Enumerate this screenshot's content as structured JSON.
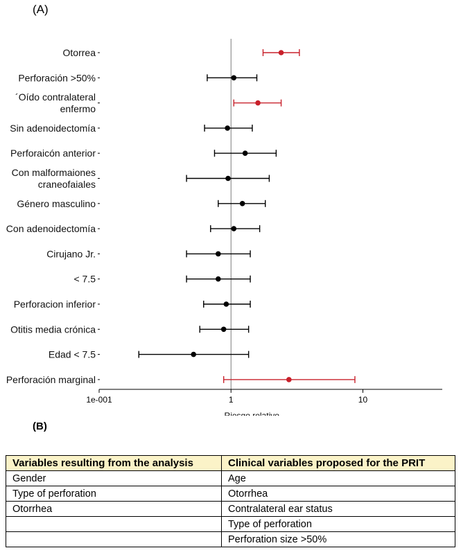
{
  "panel_a_label": "(A)",
  "panel_b_label": "(B)",
  "chart_data": {
    "type": "scatter",
    "subtype": "forest-plot",
    "xlabel": "Riesgo relativo",
    "x_scale": "log",
    "xlim": [
      0.1,
      40
    ],
    "x_ticks": [
      {
        "value": 0.1,
        "label": "1e-001"
      },
      {
        "value": 1,
        "label": "1"
      },
      {
        "value": 10,
        "label": "10"
      }
    ],
    "reference_line": 1,
    "grid": false,
    "colors": {
      "significant": "#c8202a",
      "default": "#000000",
      "reference": "#7a7a7a"
    },
    "rows": [
      {
        "label": [
          "Otorrea"
        ],
        "estimate": 2.4,
        "lower": 1.75,
        "upper": 3.3,
        "highlight": true
      },
      {
        "label": [
          "Perforación >50%"
        ],
        "estimate": 1.05,
        "lower": 0.66,
        "upper": 1.57,
        "highlight": false
      },
      {
        "label": [
          "´Oído contralateral",
          "enfermo"
        ],
        "estimate": 1.6,
        "lower": 1.05,
        "upper": 2.4,
        "highlight": true
      },
      {
        "label": [
          "Sin adenoidectomía"
        ],
        "estimate": 0.94,
        "lower": 0.63,
        "upper": 1.45,
        "highlight": false
      },
      {
        "label": [
          "Perforaicón anterior"
        ],
        "estimate": 1.28,
        "lower": 0.75,
        "upper": 2.2,
        "highlight": false
      },
      {
        "label": [
          "Con malformaiones",
          "craneofaiales"
        ],
        "estimate": 0.95,
        "lower": 0.46,
        "upper": 1.95,
        "highlight": false
      },
      {
        "label": [
          "Género masculino"
        ],
        "estimate": 1.22,
        "lower": 0.8,
        "upper": 1.82,
        "highlight": false
      },
      {
        "label": [
          "Con adenoidectomía"
        ],
        "estimate": 1.05,
        "lower": 0.7,
        "upper": 1.65,
        "highlight": false
      },
      {
        "label": [
          "Cirujano Jr."
        ],
        "estimate": 0.8,
        "lower": 0.46,
        "upper": 1.4,
        "highlight": false
      },
      {
        "label": [
          "< 7.5"
        ],
        "estimate": 0.8,
        "lower": 0.46,
        "upper": 1.4,
        "highlight": false
      },
      {
        "label": [
          "Perforacion inferior"
        ],
        "estimate": 0.92,
        "lower": 0.62,
        "upper": 1.4,
        "highlight": false
      },
      {
        "label": [
          "Otitis media crónica"
        ],
        "estimate": 0.88,
        "lower": 0.58,
        "upper": 1.36,
        "highlight": false
      },
      {
        "label": [
          "Edad  < 7.5"
        ],
        "estimate": 0.52,
        "lower": 0.2,
        "upper": 1.36,
        "highlight": false
      },
      {
        "label": [
          "Perforación marginal"
        ],
        "estimate": 2.75,
        "lower": 0.88,
        "upper": 8.7,
        "highlight": true
      }
    ]
  },
  "table": {
    "headers": [
      "Variables resulting from the analysis",
      "Clinical variables proposed for the PRIT"
    ],
    "rows": [
      [
        "Gender",
        "Age"
      ],
      [
        "Type of perforation",
        "Otorrhea"
      ],
      [
        "Otorrhea",
        "Contralateral ear status"
      ],
      [
        "",
        "Type of perforation"
      ],
      [
        "",
        "Perforation size >50%"
      ]
    ]
  }
}
